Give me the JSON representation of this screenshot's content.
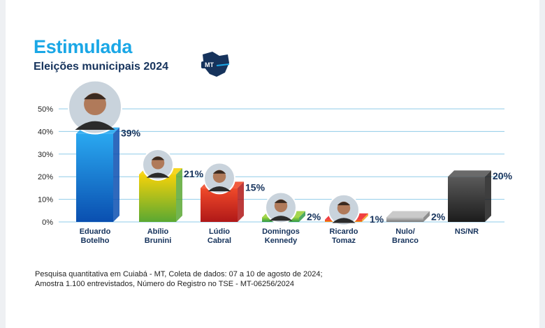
{
  "header": {
    "title": "Estimulada",
    "subtitle": "Eleições municipais 2024",
    "logo_text": "MT"
  },
  "colors": {
    "title": "#1aa7e6",
    "subtitle": "#16335c",
    "gridline": "#8fcbe8",
    "label": "#16335c"
  },
  "chart_data": {
    "type": "bar",
    "title": "Estimulada",
    "subtitle": "Eleições municipais 2024",
    "ylim": [
      0,
      50
    ],
    "yticks": [
      "0%",
      "10%",
      "20%",
      "30%",
      "40%",
      "50%"
    ],
    "grid": true,
    "categories": [
      [
        "Eduardo",
        "Botelho"
      ],
      [
        "Abílio",
        "Brunini"
      ],
      [
        "Lúdio",
        "Cabral"
      ],
      [
        "Domingos",
        "Kennedy"
      ],
      [
        "Ricardo",
        "Tomaz"
      ],
      [
        "Nulo/",
        "Branco"
      ],
      [
        "NS/NR"
      ]
    ],
    "values": [
      39,
      21,
      15,
      2,
      1,
      2,
      20
    ],
    "value_labels": [
      "39%",
      "21%",
      "15%",
      "2%",
      "1%",
      "2%",
      "20%"
    ],
    "bar_colors": [
      [
        "#2aa8f0",
        "#0a4fb0"
      ],
      [
        "#f5d20a",
        "#5aa832"
      ],
      [
        "#f04a2a",
        "#b01818"
      ],
      [
        "#9ad23a",
        "#2f9a4a"
      ],
      [
        "#f02a2a",
        "#f0a01a"
      ],
      [
        "#c4c4c4",
        "#7a7a7a"
      ],
      [
        "#5a5a5a",
        "#1c1c1c"
      ]
    ],
    "photos": [
      true,
      true,
      true,
      true,
      true,
      false,
      false
    ]
  },
  "footnote": {
    "line1": "Pesquisa quantitativa em Cuiabá - MT, Coleta de dados: 07 a 10 de agosto de 2024;",
    "line2": "Amostra 1.100 entrevistados, Número do Registro no TSE - MT-06256/2024"
  }
}
